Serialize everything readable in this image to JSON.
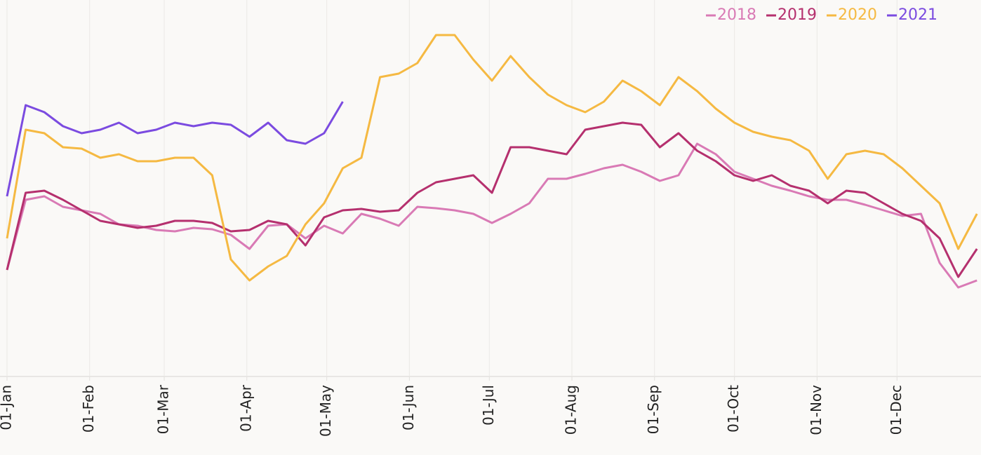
{
  "chart_data": {
    "type": "line",
    "x": [
      0,
      7,
      14,
      21,
      28,
      35,
      42,
      49,
      56,
      63,
      70,
      77,
      84,
      91,
      98,
      105,
      112,
      119,
      126,
      133,
      140,
      147,
      154,
      161,
      168,
      175,
      182,
      189,
      196,
      203,
      210,
      217,
      224,
      231,
      238,
      245,
      252,
      259,
      266,
      273,
      280,
      287,
      294,
      301,
      308,
      315,
      322,
      329,
      336,
      343,
      350,
      357,
      364
    ],
    "xlim": [
      0,
      365
    ],
    "xticks": [
      {
        "value": 0,
        "label": "01-Jan"
      },
      {
        "value": 31,
        "label": "01-Feb"
      },
      {
        "value": 59,
        "label": "01-Mar"
      },
      {
        "value": 90,
        "label": "01-Apr"
      },
      {
        "value": 120,
        "label": "01-May"
      },
      {
        "value": 151,
        "label": "01-Jun"
      },
      {
        "value": 181,
        "label": "01-Jul"
      },
      {
        "value": 212,
        "label": "01-Aug"
      },
      {
        "value": 243,
        "label": "01-Sep"
      },
      {
        "value": 273,
        "label": "01-Oct"
      },
      {
        "value": 304,
        "label": "01-Nov"
      },
      {
        "value": 334,
        "label": "01-Dec"
      }
    ],
    "grid": true,
    "legend": "top-right",
    "series": [
      {
        "name": "2018",
        "color": "#d97ab5",
        "values": [
          152,
          252,
          257,
          242,
          237,
          232,
          217,
          215,
          209,
          207,
          212,
          210,
          202,
          182,
          215,
          217,
          197,
          215,
          204,
          232,
          225,
          215,
          242,
          240,
          237,
          232,
          219,
          232,
          247,
          282,
          282,
          289,
          297,
          302,
          292,
          279,
          287,
          332,
          317,
          292,
          282,
          272,
          265,
          257,
          252,
          252,
          245,
          237,
          229,
          232,
          162,
          127,
          137
        ]
      },
      {
        "name": "2019",
        "color": "#b5306e",
        "values": [
          152,
          262,
          265,
          252,
          237,
          222,
          217,
          212,
          215,
          222,
          222,
          219,
          207,
          209,
          222,
          217,
          187,
          227,
          237,
          239,
          235,
          237,
          262,
          277,
          282,
          287,
          262,
          327,
          327,
          322,
          317,
          352,
          357,
          362,
          359,
          327,
          347,
          322,
          307,
          287,
          279,
          287,
          272,
          265,
          247,
          265,
          262,
          247,
          232,
          222,
          197,
          142,
          182
        ]
      },
      {
        "name": "2020",
        "color": "#f5b942",
        "values": [
          197,
          352,
          347,
          327,
          325,
          312,
          317,
          307,
          307,
          312,
          312,
          287,
          167,
          137,
          157,
          172,
          217,
          247,
          297,
          312,
          427,
          432,
          447,
          487,
          487,
          452,
          422,
          457,
          427,
          402,
          387,
          377,
          392,
          422,
          407,
          387,
          427,
          407,
          382,
          362,
          349,
          342,
          337,
          322,
          282,
          317,
          322,
          317,
          297,
          272,
          247,
          182,
          232
        ]
      },
      {
        "name": "2021",
        "color": "#7b4be0",
        "values": [
          257,
          387,
          377,
          357,
          347,
          352,
          362,
          347,
          352,
          362,
          357,
          362,
          359,
          342,
          362,
          337,
          332,
          347,
          392,
          null,
          null,
          null,
          null,
          null,
          null,
          null,
          null,
          null,
          null,
          null,
          null,
          null,
          null,
          null,
          null,
          null,
          null,
          null,
          null,
          null,
          null,
          null,
          null,
          null,
          null,
          null,
          null,
          null,
          null,
          null,
          null,
          null,
          null
        ]
      }
    ]
  }
}
